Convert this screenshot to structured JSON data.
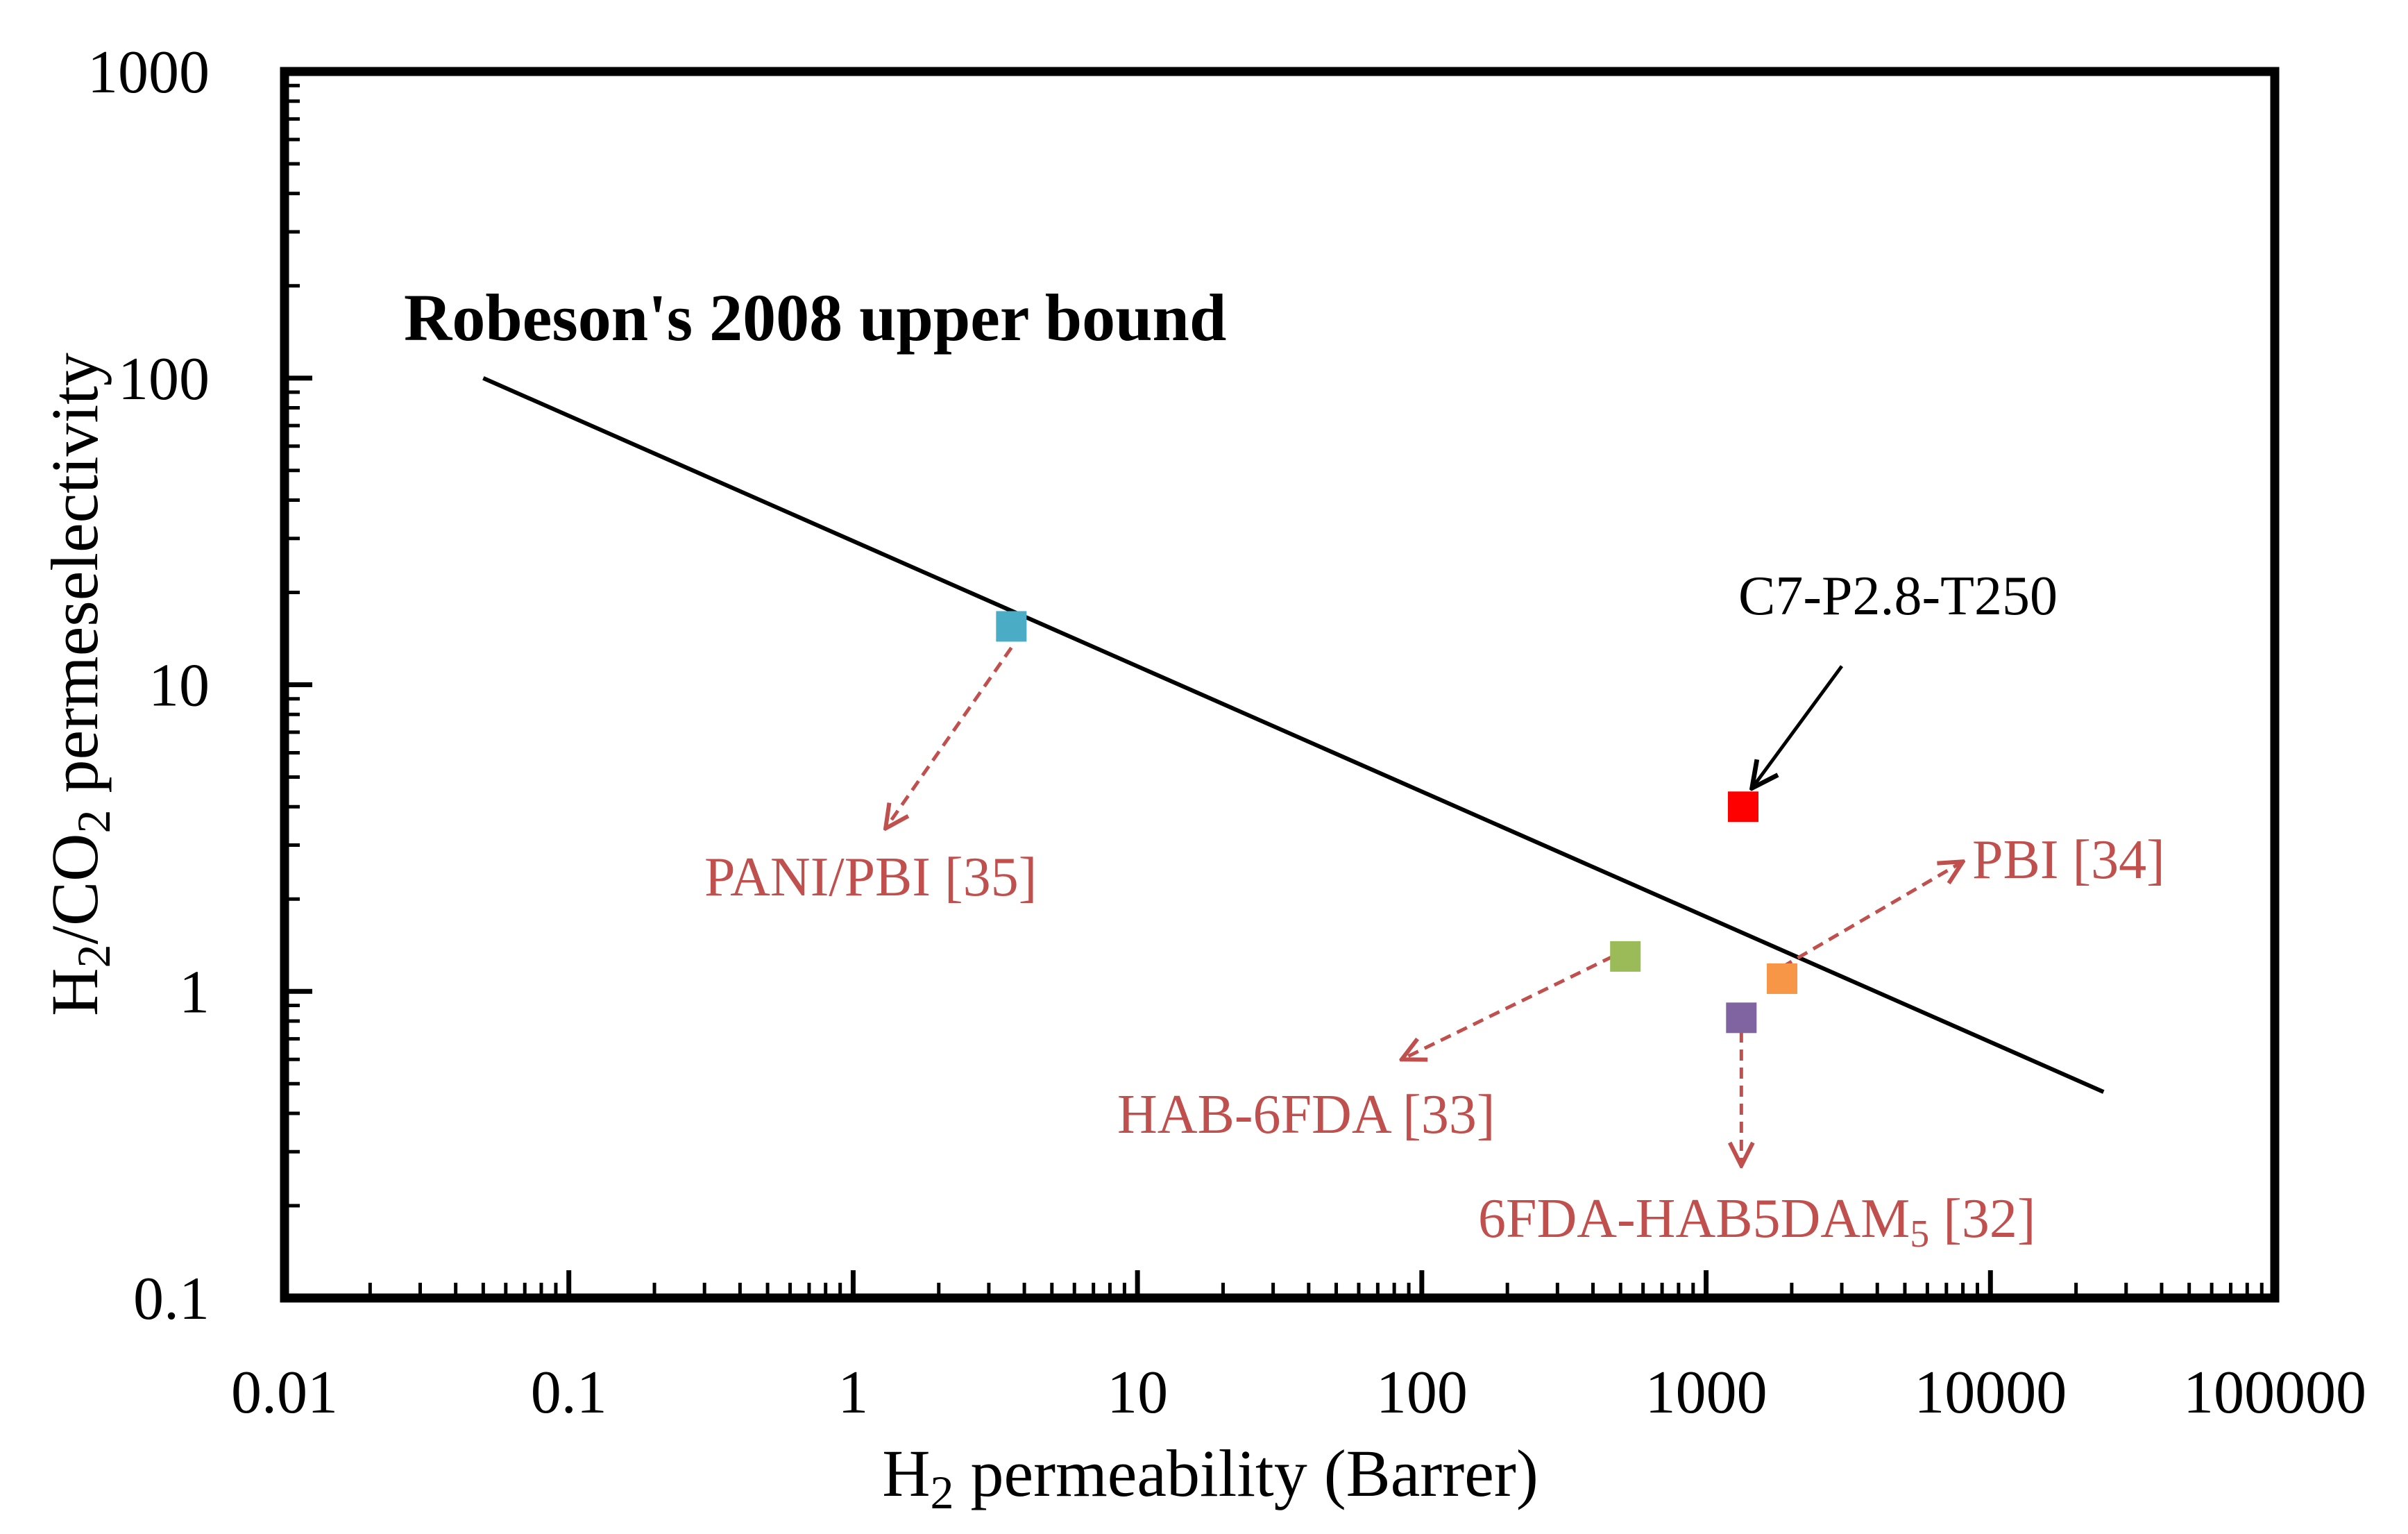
{
  "chart_data": {
    "type": "scatter",
    "x_scale": "log",
    "y_scale": "log",
    "xlim": [
      0.01,
      100000
    ],
    "ylim": [
      0.1,
      1000
    ],
    "x_ticks": [
      "0.01",
      "0.1",
      "1",
      "10",
      "100",
      "1000",
      "10000",
      "100000"
    ],
    "y_ticks": [
      "0.1",
      "1",
      "10",
      "100",
      "1000"
    ],
    "x_tick_values": [
      0.01,
      0.1,
      1,
      10,
      100,
      1000,
      10000,
      100000
    ],
    "y_tick_values": [
      0.1,
      1,
      10,
      100,
      1000
    ],
    "xlabel": {
      "pre": "H",
      "sub": "2",
      "post": " permeability (Barrer)"
    },
    "ylabel": {
      "pre": "H",
      "sub1": "2",
      "mid": "/CO",
      "sub2": "2",
      "post": " permeselectivity"
    },
    "upper_bound": {
      "label": "Robeson's 2008 upper bound",
      "points": [
        {
          "x": 0.05,
          "y": 100
        },
        {
          "x": 25000,
          "y": 0.47
        }
      ],
      "color": "#000000"
    },
    "series": [
      {
        "name": "C7-P2.8-T250",
        "x": 1350,
        "y": 4.0,
        "color": "#ff0000",
        "label": {
          "text": "C7-P2.8-T250",
          "color": "#000000"
        },
        "arrow": {
          "from": {
            "x": 3000,
            "y": 11.5
          },
          "to": {
            "x": 1450,
            "y": 4.6
          }
        }
      },
      {
        "name": "PANI/PBI [35]",
        "x": 3.6,
        "y": 15.5,
        "color": "#4bacc6",
        "label": {
          "text": "PANI/PBI [35]",
          "color": "#c0504d"
        },
        "arrow": {
          "from": {
            "x": 3.6,
            "y": 13.2
          },
          "to": {
            "x": 1.3,
            "y": 3.4
          }
        }
      },
      {
        "name": "PBI [34]",
        "x": 1850,
        "y": 1.1,
        "color": "#f79646",
        "label": {
          "text": "PBI [34]",
          "color": "#c0504d"
        },
        "arrow": {
          "from": {
            "x": 1850,
            "y": 1.2
          },
          "to": {
            "x": 8000,
            "y": 2.65
          }
        }
      },
      {
        "name": "HAB-6FDA [33]",
        "x": 520,
        "y": 1.3,
        "color": "#9bbb59",
        "label": {
          "text": "HAB-6FDA [33]",
          "color": "#c0504d"
        },
        "arrow": {
          "from": {
            "x": 470,
            "y": 1.3
          },
          "to": {
            "x": 85,
            "y": 0.6
          }
        }
      },
      {
        "name": "6FDA-HAB5DAM5 [32]",
        "x": 1330,
        "y": 0.82,
        "color": "#8064a2",
        "label": {
          "pre": "6FDA-HAB5DAM",
          "sub": "5",
          "post": " [32]",
          "color": "#c0504d"
        },
        "arrow": {
          "from": {
            "x": 1330,
            "y": 0.74
          },
          "to": {
            "x": 1330,
            "y": 0.27
          }
        }
      }
    ],
    "grid": false,
    "legend": "none"
  }
}
